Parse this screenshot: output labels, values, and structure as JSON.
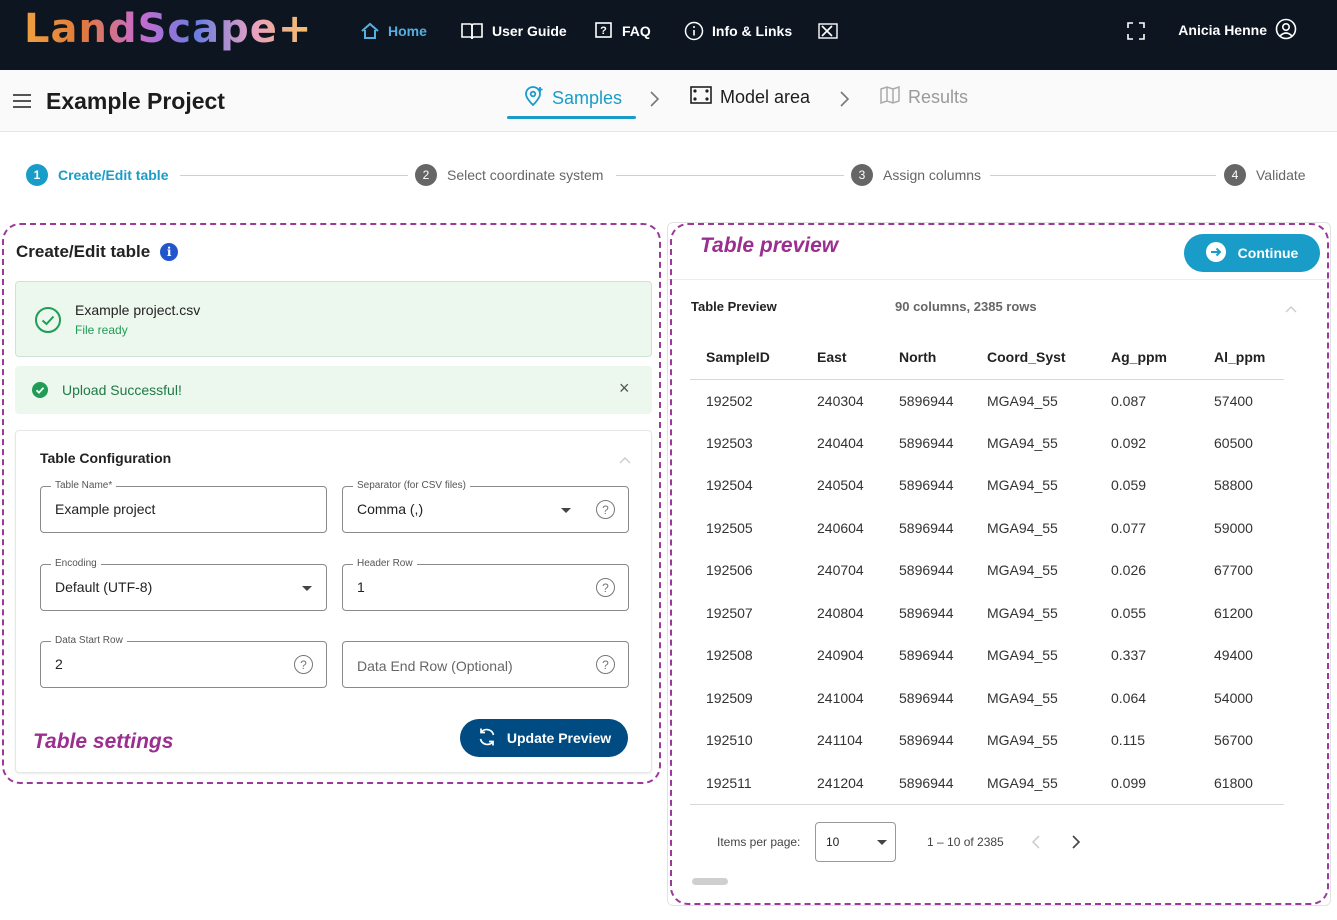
{
  "app": {
    "logo_text": "LandScape+",
    "nav": {
      "home": "Home",
      "user_guide": "User Guide",
      "faq": "FAQ",
      "info_links": "Info & Links"
    },
    "user_name": "Anicia Henne"
  },
  "project": {
    "title": "Example Project",
    "tabs": [
      {
        "label": "Samples",
        "state": "active"
      },
      {
        "label": "Model area",
        "state": "enabled"
      },
      {
        "label": "Results",
        "state": "disabled"
      }
    ]
  },
  "stepper": [
    {
      "num": "1",
      "label": "Create/Edit table",
      "active": true
    },
    {
      "num": "2",
      "label": "Select coordinate system",
      "active": false
    },
    {
      "num": "3",
      "label": "Assign columns",
      "active": false
    },
    {
      "num": "4",
      "label": "Validate",
      "active": false
    }
  ],
  "annotations": {
    "table_preview": "Table preview",
    "table_settings": "Table settings"
  },
  "left": {
    "heading": "Create/Edit table",
    "info_glyph": "i",
    "file": {
      "name": "Example project.csv",
      "status": "File ready"
    },
    "alert": "Upload Successful!",
    "alert_close": "×",
    "config": {
      "title": "Table Configuration",
      "table_name": {
        "label": "Table Name*",
        "value": "Example project"
      },
      "separator": {
        "label": "Separator (for CSV files)",
        "value": "Comma (,)"
      },
      "encoding": {
        "label": "Encoding",
        "value": "Default (UTF-8)"
      },
      "header_row": {
        "label": "Header Row",
        "value": "1"
      },
      "data_start_row": {
        "label": "Data Start Row",
        "value": "2"
      },
      "data_end_row": {
        "placeholder": "Data End Row (Optional)"
      },
      "help_glyph": "?",
      "update_button": "Update Preview"
    }
  },
  "right": {
    "continue_button": "Continue",
    "preview_title": "Table Preview",
    "preview_meta": "90 columns, 2385 rows",
    "columns": [
      "SampleID",
      "East",
      "North",
      "Coord_Syst",
      "Ag_ppm",
      "Al_ppm"
    ],
    "rows": [
      [
        "192502",
        "240304",
        "5896944",
        "MGA94_55",
        "0.087",
        "57400"
      ],
      [
        "192503",
        "240404",
        "5896944",
        "MGA94_55",
        "0.092",
        "60500"
      ],
      [
        "192504",
        "240504",
        "5896944",
        "MGA94_55",
        "0.059",
        "58800"
      ],
      [
        "192505",
        "240604",
        "5896944",
        "MGA94_55",
        "0.077",
        "59000"
      ],
      [
        "192506",
        "240704",
        "5896944",
        "MGA94_55",
        "0.026",
        "67700"
      ],
      [
        "192507",
        "240804",
        "5896944",
        "MGA94_55",
        "0.055",
        "61200"
      ],
      [
        "192508",
        "240904",
        "5896944",
        "MGA94_55",
        "0.337",
        "49400"
      ],
      [
        "192509",
        "241004",
        "5896944",
        "MGA94_55",
        "0.064",
        "54000"
      ],
      [
        "192510",
        "241104",
        "5896944",
        "MGA94_55",
        "0.115",
        "56700"
      ],
      [
        "192511",
        "241204",
        "5896944",
        "MGA94_55",
        "0.099",
        "61800"
      ]
    ],
    "paginator": {
      "items_per_page_label": "Items per page:",
      "items_per_page": "10",
      "range": "1 – 10 of 2385"
    }
  },
  "colors": {
    "topbar": "#0d1521",
    "accent": "#1a9cc9",
    "primary_button": "#004c82",
    "success_bg": "#ecf7ee",
    "success": "#1f9d55",
    "annotation": "#9b2f8f"
  }
}
